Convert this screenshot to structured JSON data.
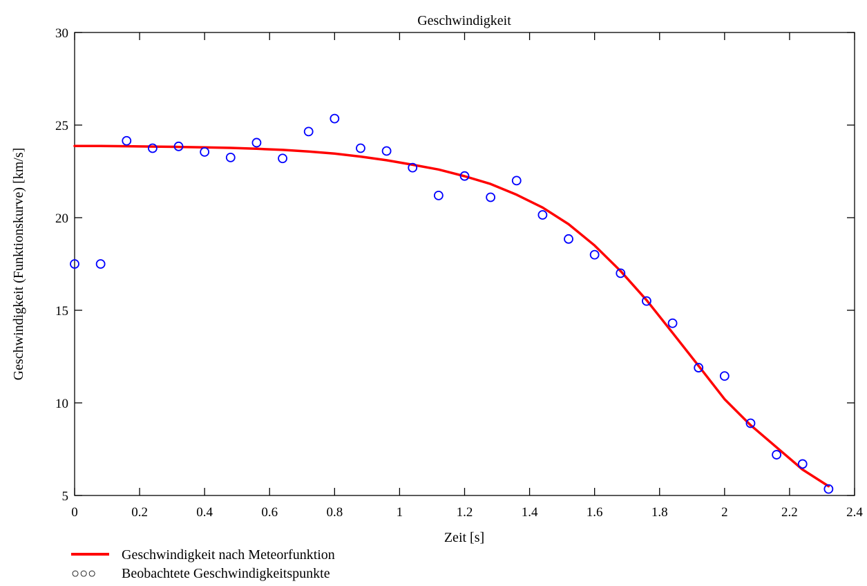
{
  "chart_data": {
    "type": "line",
    "title": "Geschwindigkeit",
    "xlabel": "Zeit [s]",
    "ylabel": "Geschwindigkeit (Funktionskurve) [km/s]",
    "xlim": [
      0,
      2.4
    ],
    "ylim": [
      5,
      30
    ],
    "x_ticks": [
      0,
      0.2,
      0.4,
      0.6,
      0.8,
      1,
      1.2,
      1.4,
      1.6,
      1.8,
      2,
      2.2,
      2.4
    ],
    "x_tick_labels": [
      "0",
      "0.2",
      "0.4",
      "0.6",
      "0.8",
      "1",
      "1.2",
      "1.4",
      "1.6",
      "1.8",
      "2",
      "2.2",
      "2.4"
    ],
    "y_ticks": [
      5,
      10,
      15,
      20,
      25,
      30
    ],
    "y_tick_labels": [
      "5",
      "10",
      "15",
      "20",
      "25",
      "30"
    ],
    "grid": false,
    "legend_position": "bottom-left",
    "series": [
      {
        "name": "Geschwindigkeit nach Meteorfunktion",
        "style": "line",
        "color": "#ff0000",
        "legend_glyph": "",
        "x": [
          0,
          0.08,
          0.16,
          0.24,
          0.32,
          0.4,
          0.48,
          0.56,
          0.64,
          0.72,
          0.8,
          0.88,
          0.96,
          1.04,
          1.12,
          1.2,
          1.28,
          1.36,
          1.44,
          1.52,
          1.6,
          1.68,
          1.76,
          1.84,
          1.92,
          2.0,
          2.08,
          2.16,
          2.24,
          2.32
        ],
        "y": [
          23.87,
          23.87,
          23.86,
          23.84,
          23.82,
          23.8,
          23.77,
          23.72,
          23.66,
          23.57,
          23.46,
          23.3,
          23.1,
          22.86,
          22.6,
          22.24,
          21.82,
          21.24,
          20.55,
          19.65,
          18.5,
          17.12,
          15.55,
          13.78,
          12.0,
          10.2,
          8.8,
          7.6,
          6.4,
          5.5
        ]
      },
      {
        "name": "Beobachtete Geschwindigkeitspunkte",
        "style": "markers",
        "color": "#0000ff",
        "legend_glyph": "○○○",
        "x": [
          0,
          0.08,
          0.16,
          0.24,
          0.32,
          0.4,
          0.48,
          0.56,
          0.64,
          0.72,
          0.8,
          0.88,
          0.96,
          1.04,
          1.12,
          1.2,
          1.28,
          1.36,
          1.44,
          1.52,
          1.6,
          1.68,
          1.76,
          1.84,
          1.92,
          2.0,
          2.08,
          2.16,
          2.24,
          2.32
        ],
        "y": [
          17.5,
          17.5,
          24.15,
          23.75,
          23.85,
          23.55,
          23.25,
          24.05,
          23.2,
          24.65,
          25.35,
          23.75,
          23.6,
          22.7,
          21.2,
          22.25,
          21.1,
          22.0,
          20.15,
          18.85,
          18.0,
          17.0,
          15.5,
          14.3,
          11.9,
          11.45,
          8.9,
          7.2,
          6.7,
          5.35
        ]
      }
    ]
  }
}
